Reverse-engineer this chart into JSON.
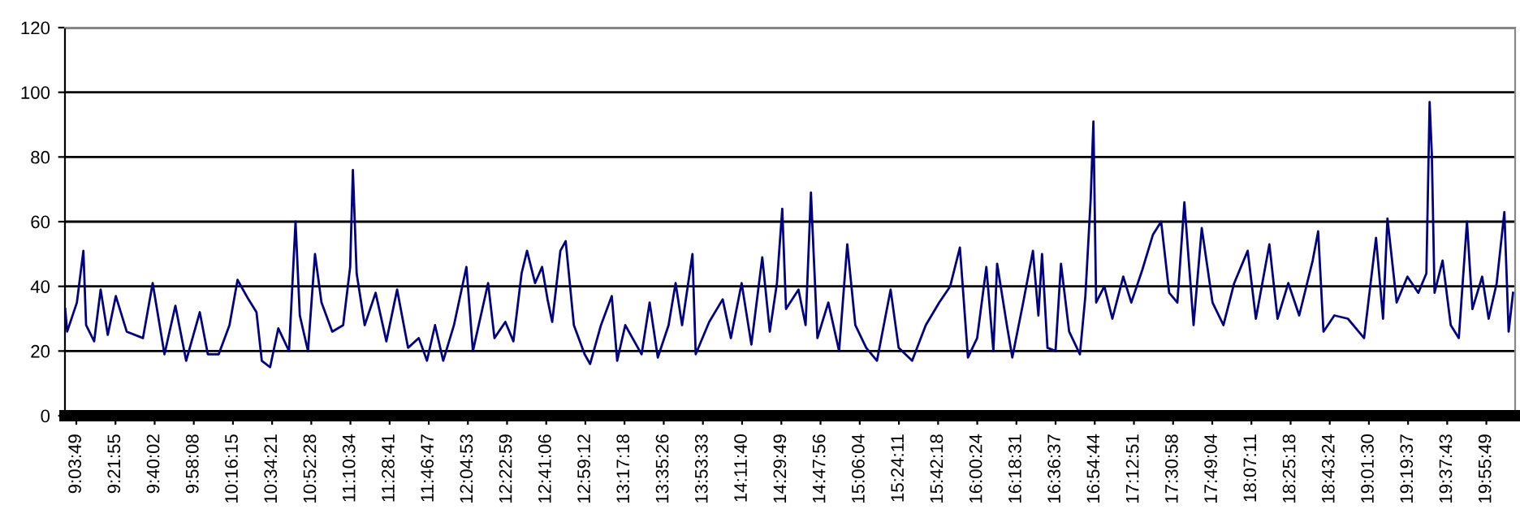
{
  "chart_data": {
    "type": "line",
    "x": [
      8.978,
      8.993,
      9.068,
      9.118,
      9.139,
      9.201,
      9.251,
      9.306,
      9.368,
      9.452,
      9.577,
      9.652,
      9.743,
      9.827,
      9.91,
      10.015,
      10.077,
      10.161,
      10.244,
      10.306,
      10.39,
      10.452,
      10.493,
      10.557,
      10.62,
      10.703,
      10.753,
      10.786,
      10.849,
      10.903,
      10.953,
      11.036,
      11.12,
      11.174,
      11.195,
      11.224,
      11.286,
      11.37,
      11.453,
      11.536,
      11.62,
      11.703,
      11.766,
      11.828,
      11.891,
      11.974,
      12.07,
      12.12,
      12.237,
      12.286,
      12.37,
      12.432,
      12.495,
      12.537,
      12.599,
      12.653,
      12.695,
      12.731,
      12.794,
      12.835,
      12.898,
      12.981,
      13.023,
      13.107,
      13.19,
      13.232,
      13.294,
      13.42,
      13.482,
      13.545,
      13.628,
      13.682,
      13.732,
      13.812,
      13.837,
      13.941,
      14.045,
      14.108,
      14.191,
      14.266,
      14.35,
      14.408,
      14.463,
      14.504,
      14.533,
      14.629,
      14.684,
      14.725,
      14.775,
      14.859,
      14.942,
      15.005,
      15.067,
      15.151,
      15.234,
      15.339,
      15.401,
      15.505,
      15.61,
      15.714,
      15.798,
      15.873,
      15.935,
      16.006,
      16.077,
      16.131,
      16.16,
      16.235,
      16.277,
      16.361,
      16.436,
      16.478,
      16.506,
      16.548,
      16.61,
      16.652,
      16.715,
      16.798,
      16.84,
      16.881,
      16.902,
      16.923,
      16.986,
      17.048,
      17.132,
      17.194,
      17.278,
      17.361,
      17.424,
      17.486,
      17.549,
      17.603,
      17.674,
      17.737,
      17.82,
      17.904,
      17.987,
      18.091,
      18.154,
      18.258,
      18.321,
      18.404,
      18.488,
      18.592,
      18.634,
      18.675,
      18.759,
      18.863,
      18.988,
      19.08,
      19.134,
      19.168,
      19.239,
      19.322,
      19.406,
      19.468,
      19.493,
      19.51,
      19.531,
      19.593,
      19.656,
      19.718,
      19.781,
      19.823,
      19.898,
      19.948,
      20.01,
      20.069,
      20.102,
      20.136
    ],
    "series": [
      {
        "color": "#000080",
        "values": [
          33,
          26,
          35,
          51,
          28,
          23,
          39,
          25,
          37,
          26,
          24,
          41,
          19,
          34,
          17,
          32,
          19,
          19,
          28,
          42,
          36,
          32,
          17,
          15,
          27,
          20,
          60,
          31,
          20,
          50,
          35,
          26,
          28,
          46,
          76,
          44,
          28,
          38,
          23,
          39,
          21,
          24,
          17,
          28,
          17,
          28,
          46,
          20,
          41,
          24,
          29,
          23,
          44,
          51,
          41,
          46,
          36,
          29,
          51,
          54,
          28,
          19,
          16,
          28,
          37,
          17,
          28,
          19,
          35,
          18,
          28,
          41,
          28,
          50,
          19,
          29,
          36,
          24,
          41,
          22,
          49,
          26,
          41,
          64,
          33,
          39,
          28,
          69,
          24,
          35,
          20,
          53,
          28,
          21,
          17,
          39,
          21,
          17,
          28,
          35,
          40,
          52,
          18,
          24,
          46,
          20,
          47,
          28,
          18,
          35,
          51,
          31,
          50,
          21,
          20,
          47,
          26,
          19,
          37,
          67,
          91,
          35,
          40,
          30,
          43,
          35,
          45,
          56,
          60,
          38,
          35,
          66,
          28,
          58,
          35,
          28,
          41,
          51,
          30,
          53,
          30,
          41,
          31,
          48,
          57,
          26,
          31,
          30,
          24,
          55,
          30,
          61,
          35,
          43,
          38,
          44,
          97,
          81,
          38,
          48,
          28,
          24,
          60,
          33,
          43,
          30,
          41,
          63,
          26,
          38
        ]
      }
    ],
    "xlim": [
      8.976,
      20.152
    ],
    "xticks": [
      {
        "value": 9.0636,
        "label": "9:03:49"
      },
      {
        "value": 9.3653,
        "label": "9:21:55"
      },
      {
        "value": 9.6672,
        "label": "9:40:02"
      },
      {
        "value": 9.9689,
        "label": "9:58:08"
      },
      {
        "value": 10.2708,
        "label": "10:16:15"
      },
      {
        "value": 10.5725,
        "label": "10:34:21"
      },
      {
        "value": 10.8744,
        "label": "10:52:28"
      },
      {
        "value": 11.1761,
        "label": "11:10:34"
      },
      {
        "value": 11.4781,
        "label": "11:28:41"
      },
      {
        "value": 11.7797,
        "label": "11:46:47"
      },
      {
        "value": 12.0814,
        "label": "12:04:53"
      },
      {
        "value": 12.3831,
        "label": "12:22:59"
      },
      {
        "value": 12.685,
        "label": "12:41:06"
      },
      {
        "value": 12.9867,
        "label": "12:59:12"
      },
      {
        "value": 13.2883,
        "label": "13:17:18"
      },
      {
        "value": 13.5906,
        "label": "13:35:26"
      },
      {
        "value": 13.8925,
        "label": "13:53:33"
      },
      {
        "value": 14.1944,
        "label": "14:11:40"
      },
      {
        "value": 14.4969,
        "label": "14:29:49"
      },
      {
        "value": 14.7989,
        "label": "14:47:56"
      },
      {
        "value": 15.1011,
        "label": "15:06:04"
      },
      {
        "value": 15.4031,
        "label": "15:24:11"
      },
      {
        "value": 15.705,
        "label": "15:42:18"
      },
      {
        "value": 16.0067,
        "label": "16:00:24"
      },
      {
        "value": 16.3086,
        "label": "16:18:31"
      },
      {
        "value": 16.6103,
        "label": "16:36:37"
      },
      {
        "value": 16.9122,
        "label": "16:54:44"
      },
      {
        "value": 17.2142,
        "label": "17:12:51"
      },
      {
        "value": 17.5161,
        "label": "17:30:58"
      },
      {
        "value": 17.8178,
        "label": "17:49:04"
      },
      {
        "value": 18.1197,
        "label": "18:07:11"
      },
      {
        "value": 18.4217,
        "label": "18:25:18"
      },
      {
        "value": 18.7233,
        "label": "18:43:24"
      },
      {
        "value": 19.025,
        "label": "19:01:30"
      },
      {
        "value": 19.3269,
        "label": "19:19:37"
      },
      {
        "value": 19.6286,
        "label": "19:37:43"
      },
      {
        "value": 19.9303,
        "label": "19:55:49"
      }
    ],
    "ylim": [
      0,
      120
    ],
    "yticks": [
      0,
      20,
      40,
      60,
      80,
      100,
      120
    ],
    "grid": "y"
  }
}
